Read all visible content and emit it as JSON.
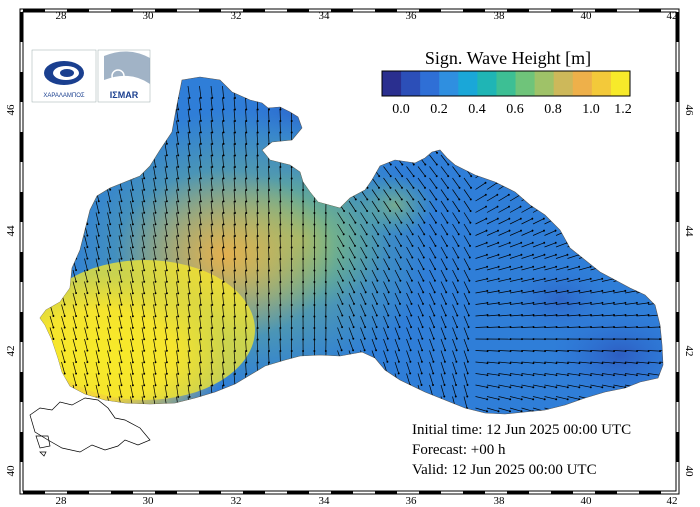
{
  "map": {
    "axes": {
      "x_ticks": [
        "28",
        "30",
        "32",
        "34",
        "36",
        "38",
        "40",
        "42"
      ],
      "y_ticks": [
        "40",
        "42",
        "44",
        "46"
      ]
    },
    "legend": {
      "title": "Sign. Wave Height [m]",
      "tick_labels": [
        "0.0",
        "0.2",
        "0.4",
        "0.6",
        "0.8",
        "1.0",
        "1.2"
      ],
      "colors": [
        "#2a2f8f",
        "#2c4fb8",
        "#2f6fd6",
        "#2f8fe0",
        "#1aa7d8",
        "#1fb5b5",
        "#3dbf94",
        "#6fc47a",
        "#9fc268",
        "#cdb85a",
        "#eeb04a",
        "#f3c93a",
        "#f7ea2a"
      ]
    },
    "logos": {
      "left_text": "ΧΑΡΑΛΑΜΠΟΣ",
      "right_text": "IΣMAR"
    },
    "info": {
      "initial": "Initial time: 12 Jun 2025 00:00 UTC",
      "forecast": "Forecast: +00 h",
      "valid": "Valid: 12 Jun 2025 00:00 UTC"
    }
  }
}
